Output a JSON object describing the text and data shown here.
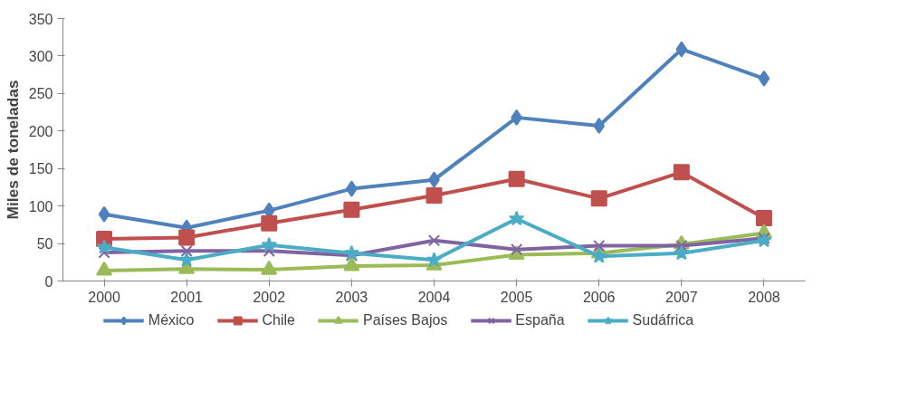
{
  "chart_data": {
    "type": "line",
    "ylabel": "Miles de toneladas",
    "categories": [
      "2000",
      "2001",
      "2002",
      "2003",
      "2004",
      "2005",
      "2006",
      "2007",
      "2008"
    ],
    "ylim": [
      0,
      350
    ],
    "yticks": [
      0,
      50,
      100,
      150,
      200,
      250,
      300,
      350
    ],
    "grid": false,
    "legend": "bottom",
    "line_style": "solid",
    "series": [
      {
        "name": "México",
        "color": "#4f81bd",
        "marker": "diamond",
        "values": [
          89,
          71,
          94,
          123,
          135,
          218,
          207,
          309,
          270
        ]
      },
      {
        "name": "Chile",
        "color": "#c0504d",
        "marker": "square",
        "values": [
          56,
          58,
          77,
          95,
          114,
          136,
          110,
          145,
          84
        ]
      },
      {
        "name": "Países Bajos",
        "color": "#9bbb59",
        "marker": "triangle",
        "values": [
          14,
          16,
          15,
          20,
          21,
          35,
          37,
          49,
          64
        ]
      },
      {
        "name": "España",
        "color": "#8064a2",
        "marker": "cross",
        "values": [
          38,
          40,
          40,
          34,
          54,
          42,
          47,
          47,
          57
        ]
      },
      {
        "name": "Sudáfrica",
        "color": "#4bacc6",
        "marker": "star",
        "values": [
          45,
          28,
          48,
          37,
          28,
          83,
          33,
          37,
          54
        ]
      }
    ]
  }
}
